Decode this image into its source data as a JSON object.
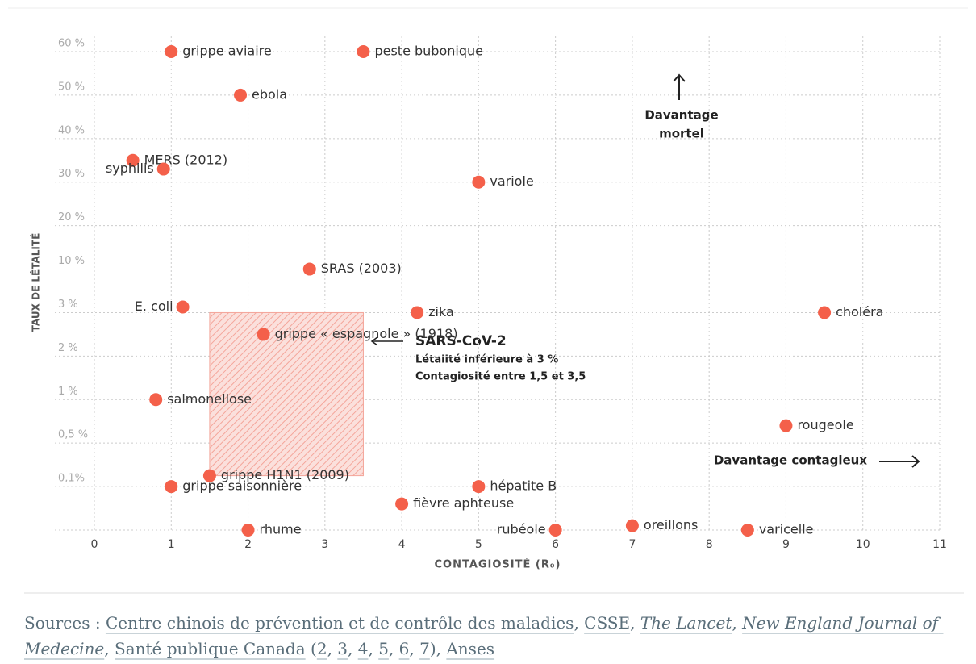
{
  "chart_data": {
    "type": "scatter",
    "x_label": "CONTAGIOSITÉ (R₀)",
    "y_label": "TAUX DE LÉTALITÉ",
    "xlim": [
      0,
      11
    ],
    "xticks": [
      0,
      1,
      2,
      3,
      4,
      5,
      6,
      7,
      8,
      9,
      10,
      11
    ],
    "ylim": [
      0,
      60
    ],
    "yticks": [
      {
        "value": 0.1,
        "label": "0,1%"
      },
      {
        "value": 0.5,
        "label": "0,5 %"
      },
      {
        "value": 1,
        "label": "1 %"
      },
      {
        "value": 2,
        "label": "2 %"
      },
      {
        "value": 3,
        "label": "3 %"
      },
      {
        "value": 10,
        "label": "10 %"
      },
      {
        "value": 20,
        "label": "20 %"
      },
      {
        "value": 30,
        "label": "30 %"
      },
      {
        "value": 40,
        "label": "40 %"
      },
      {
        "value": 50,
        "label": "50 %"
      },
      {
        "value": 60,
        "label": "60 %"
      }
    ],
    "grid": true,
    "color": "#f4604a",
    "labels": [
      "grippe aviaire",
      "peste bubonique",
      "ebola",
      "MERS (2012)",
      "syphilis",
      "variole",
      "SRAS (2003)",
      "E. coli",
      "zika",
      "choléra",
      "grippe « espagnole » (1918)",
      "salmonellose",
      "rougeole",
      "grippe H1N1 (2009)",
      "grippe saisonnière",
      "hépatite B",
      "fièvre aphteuse",
      "rhume",
      "rubéole",
      "oreillons",
      "varicelle"
    ],
    "x": [
      1,
      3.5,
      1.9,
      0.5,
      0.9,
      5,
      2.8,
      1.15,
      4.2,
      9.5,
      2.2,
      0.8,
      9,
      1.5,
      1,
      5,
      4,
      2,
      6,
      7,
      8.5
    ],
    "values": [
      60,
      60,
      50,
      35,
      33,
      30,
      10,
      3.9,
      3,
      3,
      2.5,
      1,
      0.7,
      0.2,
      0.1,
      0.1,
      0.06,
      0,
      0,
      0.01,
      0
    ],
    "highlight": {
      "x": [
        1.5,
        3.5
      ],
      "y": [
        0.2,
        3
      ],
      "title": "SARS-CoV-2",
      "lines": [
        "Létalité inférieure à 3 %",
        "Contagiosité entre 1,5 et 3,5"
      ]
    },
    "annotations": {
      "mortel": [
        "Davantage",
        "mortel"
      ],
      "contagieux": "Davantage contagieux"
    }
  },
  "sources": [
    {
      "text": "Sources : ",
      "link": false,
      "italic": false
    },
    {
      "text": "Centre chinois de prévention et de contrôle des maladies",
      "link": true,
      "italic": false
    },
    {
      "text": ", ",
      "link": false,
      "italic": false
    },
    {
      "text": "CSSE",
      "link": true,
      "italic": false
    },
    {
      "text": ", ",
      "link": false,
      "italic": false
    },
    {
      "text": "The Lancet",
      "link": true,
      "italic": true
    },
    {
      "text": ", ",
      "link": false,
      "italic": false
    },
    {
      "text": "New England Journal of Medecine",
      "link": true,
      "italic": true
    },
    {
      "text": ", ",
      "link": false,
      "italic": false
    },
    {
      "text": "Santé publique Canada",
      "link": true,
      "italic": false
    },
    {
      "text": " (",
      "link": false,
      "italic": false
    },
    {
      "text": "2",
      "link": true,
      "italic": false
    },
    {
      "text": ", ",
      "link": false,
      "italic": false
    },
    {
      "text": "3",
      "link": true,
      "italic": false
    },
    {
      "text": ", ",
      "link": false,
      "italic": false
    },
    {
      "text": "4",
      "link": true,
      "italic": false
    },
    {
      "text": ", ",
      "link": false,
      "italic": false
    },
    {
      "text": "5",
      "link": true,
      "italic": false
    },
    {
      "text": ", ",
      "link": false,
      "italic": false
    },
    {
      "text": "6",
      "link": true,
      "italic": false
    },
    {
      "text": ", ",
      "link": false,
      "italic": false
    },
    {
      "text": "7",
      "link": true,
      "italic": false
    },
    {
      "text": "), ",
      "link": false,
      "italic": false
    },
    {
      "text": "Anses",
      "link": true,
      "italic": false
    }
  ]
}
